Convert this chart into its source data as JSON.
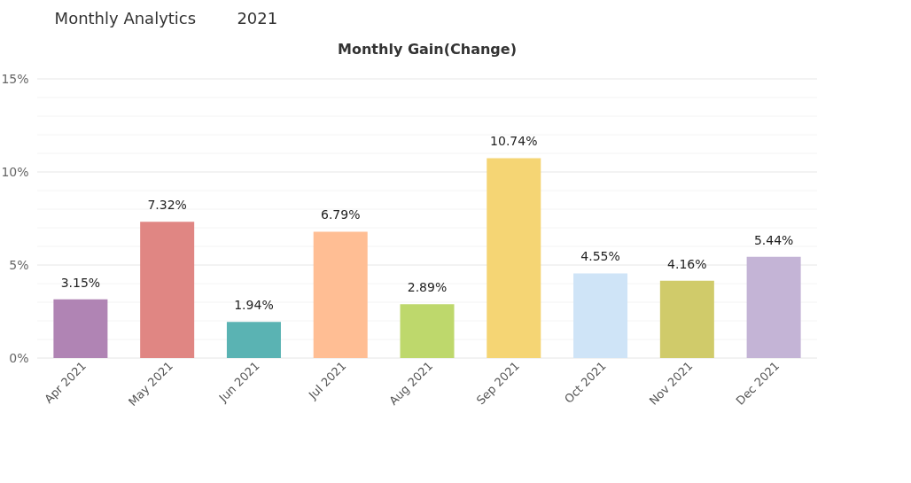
{
  "chart_data": {
    "type": "bar",
    "title": "Monthly Gain(Change)",
    "annotations": [
      "Monthly Analytics",
      "2021"
    ],
    "categories": [
      "Apr 2021",
      "May 2021",
      "Jun 2021",
      "Jul 2021",
      "Aug 2021",
      "Sep 2021",
      "Oct 2021",
      "Nov 2021",
      "Dec 2021"
    ],
    "values": [
      3.15,
      7.32,
      1.94,
      6.79,
      2.89,
      10.74,
      4.55,
      4.16,
      5.44
    ],
    "value_labels": [
      "3.15%",
      "7.32%",
      "1.94%",
      "6.79%",
      "2.89%",
      "10.74%",
      "4.55%",
      "4.16%",
      "5.44%"
    ],
    "colors": [
      "#b084b4",
      "#e08683",
      "#5ab3b3",
      "#ffbe94",
      "#bed86c",
      "#f5d574",
      "#cfe4f7",
      "#d0cb6a",
      "#c4b4d6"
    ],
    "ylim": [
      0,
      15
    ],
    "yticks": [
      {
        "value": 0,
        "label": "0%"
      },
      {
        "value": 1,
        "label": null
      },
      {
        "value": 2,
        "label": null
      },
      {
        "value": 3,
        "label": null
      },
      {
        "value": 4,
        "label": null
      },
      {
        "value": 5,
        "label": "5%"
      },
      {
        "value": 6,
        "label": null
      },
      {
        "value": 7,
        "label": null
      },
      {
        "value": 8,
        "label": null
      },
      {
        "value": 9,
        "label": null
      },
      {
        "value": 10,
        "label": "10%"
      },
      {
        "value": 11,
        "label": null
      },
      {
        "value": 12,
        "label": null
      },
      {
        "value": 13,
        "label": null
      },
      {
        "value": 14,
        "label": null
      },
      {
        "value": 15,
        "label": "15%"
      }
    ],
    "grid": true
  }
}
